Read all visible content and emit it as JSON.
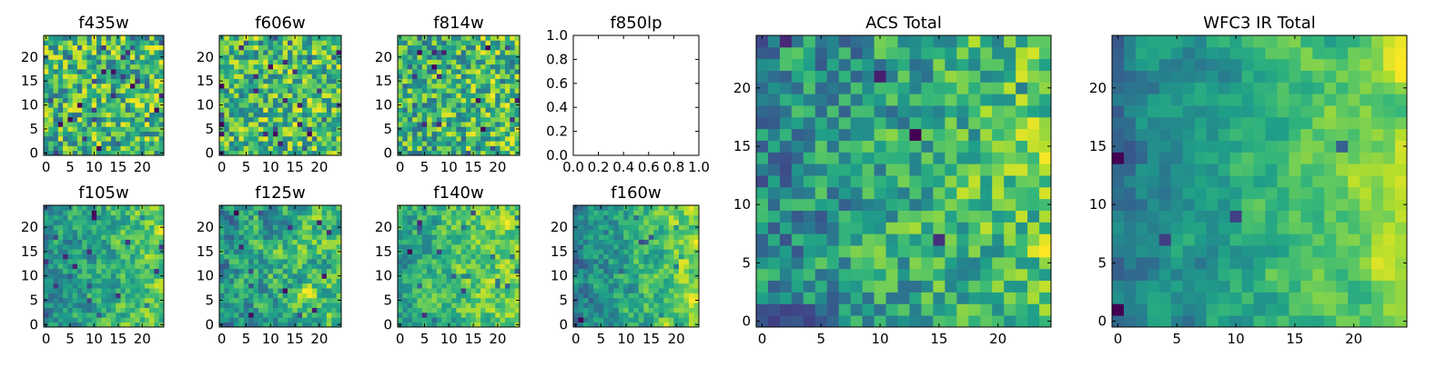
{
  "chart_data": [
    {
      "type": "heatmap",
      "title": "f435w",
      "xticks": [
        "0",
        "5",
        "10",
        "15",
        "20"
      ],
      "yticks": [
        "0",
        "5",
        "10",
        "15",
        "20"
      ],
      "xlim": [
        -0.5,
        24.5
      ],
      "ylim": [
        -0.5,
        24.5
      ],
      "grid": false,
      "colormap": "viridis",
      "rows": 25,
      "cols": 25,
      "seed": 11,
      "smooth": 0.0,
      "lowbias": 0.35,
      "gradient": 0.05
    },
    {
      "type": "heatmap",
      "title": "f606w",
      "xticks": [
        "0",
        "5",
        "10",
        "15",
        "20"
      ],
      "yticks": [
        "0",
        "5",
        "10",
        "15",
        "20"
      ],
      "xlim": [
        -0.5,
        24.5
      ],
      "ylim": [
        -0.5,
        24.5
      ],
      "grid": false,
      "colormap": "viridis",
      "rows": 25,
      "cols": 25,
      "seed": 23,
      "smooth": 0.1,
      "lowbias": 0.25,
      "gradient": 0.05
    },
    {
      "type": "heatmap",
      "title": "f814w",
      "xticks": [
        "0",
        "5",
        "10",
        "15",
        "20"
      ],
      "yticks": [
        "0",
        "5",
        "10",
        "15",
        "20"
      ],
      "xlim": [
        -0.5,
        24.5
      ],
      "ylim": [
        -0.5,
        24.5
      ],
      "grid": false,
      "colormap": "viridis",
      "rows": 25,
      "cols": 25,
      "seed": 37,
      "smooth": 0.1,
      "lowbias": 0.25,
      "gradient": 0.15
    },
    {
      "type": "line",
      "title": "f850lp",
      "xticks": [
        "0.0",
        "0.2",
        "0.4",
        "0.6",
        "0.8",
        "1.0"
      ],
      "yticks": [
        "0.0",
        "0.2",
        "0.4",
        "0.6",
        "0.8",
        "1.0"
      ],
      "xlim": [
        0,
        1
      ],
      "ylim": [
        0,
        1
      ],
      "grid": false,
      "series": []
    },
    {
      "type": "heatmap",
      "title": "f105w",
      "xticks": [
        "0",
        "5",
        "10",
        "15",
        "20"
      ],
      "yticks": [
        "0",
        "5",
        "10",
        "15",
        "20"
      ],
      "xlim": [
        -0.5,
        24.5
      ],
      "ylim": [
        -0.5,
        24.5
      ],
      "grid": false,
      "colormap": "viridis",
      "rows": 25,
      "cols": 25,
      "seed": 41,
      "smooth": 0.55,
      "lowbias": 0.1,
      "gradient": 0.35
    },
    {
      "type": "heatmap",
      "title": "f125w",
      "xticks": [
        "0",
        "5",
        "10",
        "15",
        "20"
      ],
      "yticks": [
        "0",
        "5",
        "10",
        "15",
        "20"
      ],
      "xlim": [
        -0.5,
        24.5
      ],
      "ylim": [
        -0.5,
        24.5
      ],
      "grid": false,
      "colormap": "viridis",
      "rows": 25,
      "cols": 25,
      "seed": 53,
      "smooth": 0.55,
      "lowbias": 0.1,
      "gradient": 0.35
    },
    {
      "type": "heatmap",
      "title": "f140w",
      "xticks": [
        "0",
        "5",
        "10",
        "15",
        "20"
      ],
      "yticks": [
        "0",
        "5",
        "10",
        "15",
        "20"
      ],
      "xlim": [
        -0.5,
        24.5
      ],
      "ylim": [
        -0.5,
        24.5
      ],
      "grid": false,
      "colormap": "viridis",
      "rows": 25,
      "cols": 25,
      "seed": 67,
      "smooth": 0.55,
      "lowbias": 0.1,
      "gradient": 0.35
    },
    {
      "type": "heatmap",
      "title": "f160w",
      "xticks": [
        "0",
        "5",
        "10",
        "15",
        "20"
      ],
      "yticks": [
        "0",
        "5",
        "10",
        "15",
        "20"
      ],
      "xlim": [
        -0.5,
        24.5
      ],
      "ylim": [
        -0.5,
        24.5
      ],
      "grid": false,
      "colormap": "viridis",
      "rows": 25,
      "cols": 25,
      "seed": 79,
      "smooth": 0.55,
      "lowbias": 0.1,
      "gradient": 0.55
    },
    {
      "type": "heatmap",
      "title": "ACS Total",
      "xticks": [
        "0",
        "5",
        "10",
        "15",
        "20"
      ],
      "yticks": [
        "0",
        "5",
        "10",
        "15",
        "20"
      ],
      "xlim": [
        -0.5,
        24.5
      ],
      "ylim": [
        -0.5,
        24.5
      ],
      "grid": false,
      "colormap": "viridis",
      "rows": 25,
      "cols": 25,
      "seed": 97,
      "smooth": 0.35,
      "lowbias": 0.05,
      "gradient": 0.4
    },
    {
      "type": "heatmap",
      "title": "WFC3 IR Total",
      "xticks": [
        "0",
        "5",
        "10",
        "15",
        "20"
      ],
      "yticks": [
        "0",
        "5",
        "10",
        "15",
        "20"
      ],
      "xlim": [
        -0.5,
        24.5
      ],
      "ylim": [
        -0.5,
        24.5
      ],
      "grid": false,
      "colormap": "viridis",
      "rows": 25,
      "cols": 25,
      "seed": 113,
      "smooth": 0.7,
      "lowbias": 0.05,
      "gradient": 0.75
    }
  ]
}
